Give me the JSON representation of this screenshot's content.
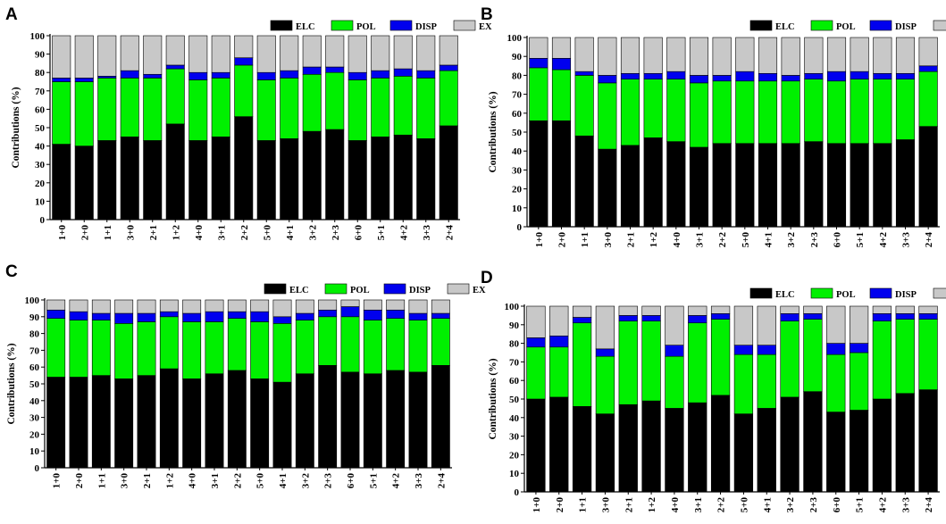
{
  "colors": {
    "ELC": "#000000",
    "POL": "#00f000",
    "DISP": "#0000ee",
    "EX": "#c8c8c8"
  },
  "chart_data": [
    {
      "panel": "A",
      "type": "bar",
      "stacked": true,
      "ylabel": "Contributions (%)",
      "ylim": [
        0,
        100
      ],
      "yticks": [
        0,
        10,
        20,
        30,
        40,
        50,
        60,
        70,
        80,
        90,
        100
      ],
      "categories": [
        "1+0",
        "2+0",
        "1+1",
        "3+0",
        "2+1",
        "1+2",
        "4+0",
        "3+1",
        "2+2",
        "5+0",
        "4+1",
        "3+2",
        "2+3",
        "6+0",
        "5+1",
        "4+2",
        "3+3",
        "2+4"
      ],
      "legend": [
        "ELC",
        "POL",
        "DISP",
        "EX"
      ],
      "series": [
        {
          "name": "ELC",
          "values": [
            41,
            40,
            43,
            45,
            43,
            52,
            43,
            45,
            56,
            43,
            44,
            48,
            49,
            43,
            45,
            46,
            44,
            51
          ]
        },
        {
          "name": "POL",
          "values": [
            34,
            35,
            34,
            32,
            34,
            30,
            33,
            32,
            28,
            33,
            33,
            31,
            31,
            33,
            32,
            32,
            33,
            30
          ]
        },
        {
          "name": "DISP",
          "values": [
            2,
            2,
            1,
            4,
            2,
            2,
            4,
            3,
            4,
            4,
            4,
            4,
            3,
            4,
            4,
            4,
            4,
            3
          ]
        },
        {
          "name": "EX",
          "values": [
            23,
            23,
            22,
            19,
            21,
            16,
            20,
            20,
            12,
            20,
            19,
            17,
            17,
            20,
            19,
            18,
            19,
            16
          ]
        }
      ]
    },
    {
      "panel": "B",
      "type": "bar",
      "stacked": true,
      "ylabel": "Contributions (%)",
      "ylim": [
        0,
        100
      ],
      "yticks": [
        0,
        10,
        20,
        30,
        40,
        50,
        60,
        70,
        80,
        90,
        100
      ],
      "categories": [
        "1+0",
        "2+0",
        "1+1",
        "3+0",
        "2+1",
        "1+2",
        "4+0",
        "3+1",
        "2+2",
        "5+0",
        "4+1",
        "3+2",
        "2+3",
        "6+0",
        "5+1",
        "4+2",
        "3+3",
        "2+4"
      ],
      "legend": [
        "ELC",
        "POL",
        "DISP",
        "EX"
      ],
      "series": [
        {
          "name": "ELC",
          "values": [
            56,
            56,
            48,
            41,
            43,
            47,
            45,
            42,
            44,
            44,
            44,
            44,
            45,
            44,
            44,
            44,
            46,
            53
          ]
        },
        {
          "name": "POL",
          "values": [
            28,
            27,
            32,
            35,
            35,
            31,
            33,
            34,
            33,
            33,
            33,
            33,
            33,
            33,
            34,
            34,
            32,
            29
          ]
        },
        {
          "name": "DISP",
          "values": [
            5,
            6,
            2,
            4,
            3,
            3,
            4,
            4,
            3,
            5,
            4,
            3,
            3,
            5,
            4,
            3,
            3,
            3
          ]
        },
        {
          "name": "EX",
          "values": [
            11,
            11,
            18,
            20,
            19,
            19,
            18,
            20,
            20,
            18,
            19,
            20,
            19,
            18,
            18,
            19,
            19,
            15
          ]
        }
      ]
    },
    {
      "panel": "C",
      "type": "bar",
      "stacked": true,
      "ylabel": "Contributions (%)",
      "ylim": [
        0,
        100
      ],
      "yticks": [
        0,
        10,
        20,
        30,
        40,
        50,
        60,
        70,
        80,
        90,
        100
      ],
      "categories": [
        "1+0",
        "2+0",
        "1+1",
        "3+0",
        "2+1",
        "1+2",
        "4+0",
        "3+1",
        "2+2",
        "5+0",
        "4+1",
        "3+2",
        "2+3",
        "6+0",
        "5+1",
        "4+2",
        "3+3",
        "2+4"
      ],
      "legend": [
        "ELC",
        "POL",
        "DISP",
        "EX"
      ],
      "series": [
        {
          "name": "ELC",
          "values": [
            54,
            54,
            55,
            53,
            55,
            59,
            53,
            56,
            58,
            53,
            51,
            56,
            61,
            57,
            56,
            58,
            57,
            61
          ]
        },
        {
          "name": "POL",
          "values": [
            35,
            34,
            33,
            33,
            32,
            31,
            34,
            31,
            31,
            34,
            35,
            32,
            29,
            33,
            32,
            31,
            31,
            28
          ]
        },
        {
          "name": "DISP",
          "values": [
            5,
            5,
            4,
            6,
            5,
            3,
            5,
            6,
            4,
            6,
            4,
            4,
            4,
            6,
            6,
            5,
            4,
            3
          ]
        },
        {
          "name": "EX",
          "values": [
            6,
            7,
            8,
            8,
            8,
            7,
            8,
            7,
            7,
            7,
            10,
            8,
            6,
            4,
            6,
            6,
            8,
            8
          ]
        }
      ]
    },
    {
      "panel": "D",
      "type": "bar",
      "stacked": true,
      "ylabel": "Contributions (%)",
      "ylim": [
        0,
        100
      ],
      "yticks": [
        0,
        10,
        20,
        30,
        40,
        50,
        60,
        70,
        80,
        90,
        100
      ],
      "categories": [
        "1+0",
        "2+0",
        "1+1",
        "3+0",
        "2+1",
        "1+2",
        "4+0",
        "3+1",
        "2+2",
        "5+0",
        "4+1",
        "3+2",
        "2+3",
        "6+0",
        "5+1",
        "4+2",
        "3+3",
        "2+4"
      ],
      "legend": [
        "ELC",
        "POL",
        "DISP",
        "EX"
      ],
      "series": [
        {
          "name": "ELC",
          "values": [
            50,
            51,
            46,
            42,
            47,
            49,
            45,
            48,
            52,
            42,
            45,
            51,
            54,
            43,
            44,
            50,
            53,
            55
          ]
        },
        {
          "name": "POL",
          "values": [
            28,
            27,
            45,
            31,
            45,
            43,
            28,
            43,
            41,
            32,
            29,
            41,
            39,
            31,
            31,
            42,
            40,
            38
          ]
        },
        {
          "name": "DISP",
          "values": [
            5,
            6,
            3,
            4,
            3,
            3,
            6,
            4,
            3,
            5,
            5,
            4,
            3,
            6,
            5,
            4,
            3,
            3
          ]
        },
        {
          "name": "EX",
          "values": [
            17,
            16,
            6,
            23,
            5,
            5,
            21,
            5,
            4,
            21,
            21,
            4,
            4,
            20,
            20,
            4,
            4,
            4
          ]
        }
      ]
    }
  ]
}
